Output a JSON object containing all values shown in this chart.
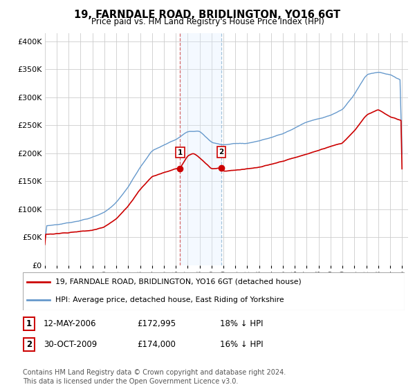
{
  "title": "19, FARNDALE ROAD, BRIDLINGTON, YO16 6GT",
  "subtitle": "Price paid vs. HM Land Registry's House Price Index (HPI)",
  "ylabel_ticks": [
    "£0",
    "£50K",
    "£100K",
    "£150K",
    "£200K",
    "£250K",
    "£300K",
    "£350K",
    "£400K"
  ],
  "ytick_values": [
    0,
    50000,
    100000,
    150000,
    200000,
    250000,
    300000,
    350000,
    400000
  ],
  "ylim": [
    0,
    415000
  ],
  "xlim_start": 1995.0,
  "xlim_end": 2025.5,
  "sale1_date": 2006.36,
  "sale1_price": 172995,
  "sale2_date": 2009.83,
  "sale2_price": 174000,
  "sale_marker_color": "#cc0000",
  "hpi_color": "#6699cc",
  "price_color": "#cc0000",
  "shade_color": "#ddeeff",
  "legend_label_price": "19, FARNDALE ROAD, BRIDLINGTON, YO16 6GT (detached house)",
  "legend_label_hpi": "HPI: Average price, detached house, East Riding of Yorkshire",
  "table_row1": [
    "1",
    "12-MAY-2006",
    "£172,995",
    "18% ↓ HPI"
  ],
  "table_row2": [
    "2",
    "30-OCT-2009",
    "£174,000",
    "16% ↓ HPI"
  ],
  "footer": "Contains HM Land Registry data © Crown copyright and database right 2024.\nThis data is licensed under the Open Government Licence v3.0.",
  "grid_color": "#cccccc",
  "hpi_seed_values": [
    [
      1995.0,
      70000
    ],
    [
      1996.0,
      72000
    ],
    [
      1997.0,
      76000
    ],
    [
      1998.0,
      80000
    ],
    [
      1999.0,
      86000
    ],
    [
      2000.0,
      95000
    ],
    [
      2001.0,
      112000
    ],
    [
      2002.0,
      140000
    ],
    [
      2003.0,
      175000
    ],
    [
      2004.0,
      205000
    ],
    [
      2005.0,
      215000
    ],
    [
      2006.0,
      225000
    ],
    [
      2007.0,
      240000
    ],
    [
      2008.0,
      240000
    ],
    [
      2009.0,
      220000
    ],
    [
      2010.0,
      215000
    ],
    [
      2011.0,
      218000
    ],
    [
      2012.0,
      218000
    ],
    [
      2013.0,
      222000
    ],
    [
      2014.0,
      228000
    ],
    [
      2015.0,
      235000
    ],
    [
      2016.0,
      245000
    ],
    [
      2017.0,
      256000
    ],
    [
      2018.0,
      262000
    ],
    [
      2019.0,
      268000
    ],
    [
      2020.0,
      278000
    ],
    [
      2021.0,
      305000
    ],
    [
      2022.0,
      340000
    ],
    [
      2023.0,
      345000
    ],
    [
      2024.0,
      340000
    ],
    [
      2025.0,
      330000
    ]
  ],
  "price_seed_values": [
    [
      1995.0,
      55000
    ],
    [
      1996.0,
      56000
    ],
    [
      1997.0,
      58000
    ],
    [
      1998.0,
      60000
    ],
    [
      1999.0,
      62000
    ],
    [
      2000.0,
      68000
    ],
    [
      2001.0,
      82000
    ],
    [
      2002.0,
      105000
    ],
    [
      2003.0,
      135000
    ],
    [
      2004.0,
      158000
    ],
    [
      2005.0,
      165000
    ],
    [
      2006.0,
      172000
    ],
    [
      2006.36,
      172995
    ],
    [
      2007.0,
      195000
    ],
    [
      2007.5,
      200000
    ],
    [
      2008.0,
      192000
    ],
    [
      2009.0,
      172000
    ],
    [
      2009.83,
      174000
    ],
    [
      2010.0,
      168000
    ],
    [
      2011.0,
      170000
    ],
    [
      2012.0,
      172000
    ],
    [
      2013.0,
      175000
    ],
    [
      2014.0,
      180000
    ],
    [
      2015.0,
      186000
    ],
    [
      2016.0,
      192000
    ],
    [
      2017.0,
      198000
    ],
    [
      2018.0,
      205000
    ],
    [
      2019.0,
      212000
    ],
    [
      2020.0,
      218000
    ],
    [
      2021.0,
      240000
    ],
    [
      2022.0,
      268000
    ],
    [
      2023.0,
      278000
    ],
    [
      2024.0,
      265000
    ],
    [
      2025.0,
      258000
    ]
  ]
}
